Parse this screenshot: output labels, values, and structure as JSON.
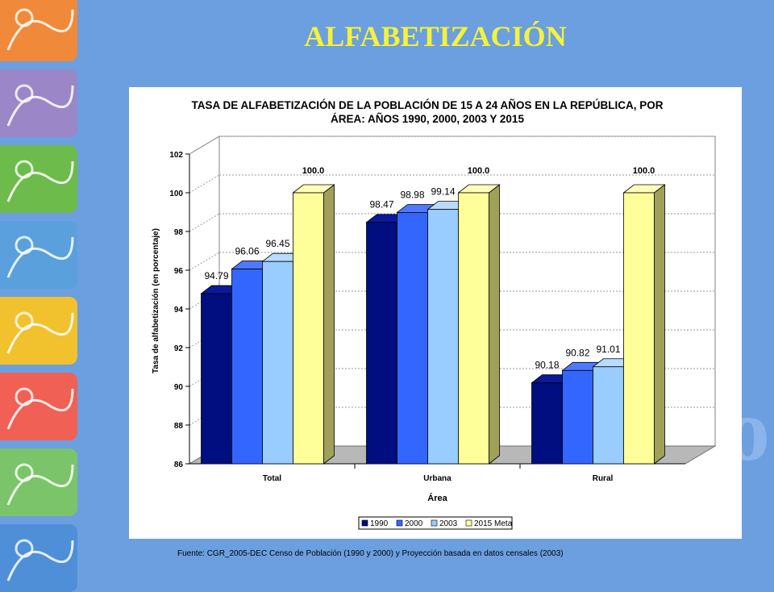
{
  "slide": {
    "title": "ALFABETIZACIÓN",
    "footnote": "Fuente: CGR_2005-DEC Censo de Población (1990 y 2000) y Proyección basada en datos censales (2003)"
  },
  "decor": {
    "tile_colors": [
      "#f08a3a",
      "#9b86c8",
      "#6dbb4a",
      "#5aa0dc",
      "#f2c12e",
      "#f06055",
      "#7cc46a",
      "#4e8fd8"
    ],
    "bar_colors": [
      "#000e80",
      "#3366ff",
      "#99ccff",
      "#ffff99"
    ]
  },
  "chart_data": {
    "type": "bar",
    "title": "TASA DE ALFABETIZACIÓN DE LA POBLACIÓN DE 15 A 24 AÑOS EN LA REPÚBLICA, POR ÁREA: AÑOS 1990, 2000, 2003 Y 2015",
    "title_lines": [
      "TASA DE ALFABETIZACIÓN DE LA POBLACIÓN DE 15 A 24 AÑOS EN LA REPÚBLICA, POR",
      "ÁREA: AÑOS 1990, 2000, 2003 Y 2015"
    ],
    "xlabel": "Área",
    "ylabel": "Tasa de alfabetización (en porcentaje)",
    "ylim": [
      86,
      102
    ],
    "yticks": [
      "86",
      "88",
      "90",
      "92",
      "94",
      "96",
      "98",
      "100",
      "102"
    ],
    "grid": true,
    "legend_position": "bottom",
    "categories": [
      "Total",
      "Urbana",
      "Rural"
    ],
    "series": [
      {
        "name": "1990",
        "values": [
          94.79,
          98.47,
          90.18
        ],
        "labels": [
          "94.79",
          "98.47",
          "90.18"
        ]
      },
      {
        "name": "2000",
        "values": [
          96.06,
          98.98,
          90.82
        ],
        "labels": [
          "96.06",
          "98.98",
          "90.82"
        ]
      },
      {
        "name": "2003",
        "values": [
          96.45,
          99.14,
          91.01
        ],
        "labels": [
          "96.45",
          "99.14",
          "91.01"
        ]
      },
      {
        "name": "2015 Meta",
        "values": [
          100.0,
          100.0,
          100.0
        ],
        "labels": [
          "100.0",
          "100.0",
          "100.0"
        ]
      }
    ]
  }
}
